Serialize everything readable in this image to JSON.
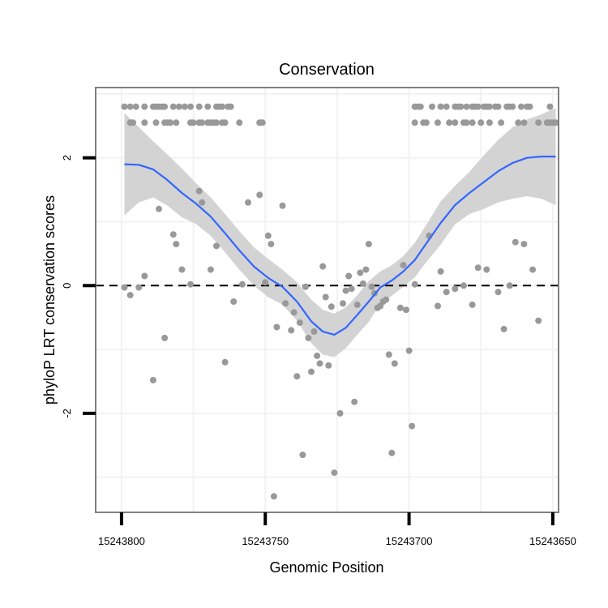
{
  "chart_data": {
    "type": "scatter",
    "title": "Conservation",
    "xlabel": "Genomic Position",
    "ylabel": "phyloP LRT conservation scores",
    "x_reversed": true,
    "xlim": [
      15243809,
      15243648
    ],
    "ylim": [
      -3.55,
      3.1
    ],
    "x_ticks": [
      15243800,
      15243750,
      15243700,
      15243650
    ],
    "x_tick_labels": [
      "15243800",
      "15243750",
      "15243700",
      "15243650"
    ],
    "y_ticks": [
      -2,
      0,
      2
    ],
    "y_tick_labels": [
      "-2",
      "0",
      "2"
    ],
    "minor_x": [
      15243775,
      15243725,
      15243675
    ],
    "minor_y": [
      -3,
      -1,
      1,
      3
    ],
    "reference_line": {
      "y": 0,
      "style": "dashed"
    },
    "colors": {
      "points": "#999999",
      "smooth": "#3366ff",
      "ribbon": "#d3d3d3",
      "panel_border": "#808080",
      "grid": "#f2f2f2"
    },
    "points": [
      [
        15243799,
        2.8
      ],
      [
        15243797,
        2.8
      ],
      [
        15243795,
        2.8
      ],
      [
        15243792,
        2.8
      ],
      [
        15243789,
        2.8
      ],
      [
        15243788,
        2.8
      ],
      [
        15243787,
        2.8
      ],
      [
        15243786,
        2.8
      ],
      [
        15243785,
        2.8
      ],
      [
        15243782,
        2.8
      ],
      [
        15243780,
        2.8
      ],
      [
        15243778,
        2.8
      ],
      [
        15243776,
        2.8
      ],
      [
        15243773,
        2.8
      ],
      [
        15243770,
        2.8
      ],
      [
        15243767,
        2.8
      ],
      [
        15243766,
        2.8
      ],
      [
        15243765,
        2.8
      ],
      [
        15243763,
        2.8
      ],
      [
        15243762,
        2.8
      ],
      [
        15243698,
        2.8
      ],
      [
        15243697,
        2.8
      ],
      [
        15243696,
        2.8
      ],
      [
        15243692,
        2.8
      ],
      [
        15243689,
        2.8
      ],
      [
        15243687,
        2.8
      ],
      [
        15243684,
        2.8
      ],
      [
        15243683,
        2.8
      ],
      [
        15243682,
        2.8
      ],
      [
        15243680,
        2.8
      ],
      [
        15243678,
        2.8
      ],
      [
        15243677,
        2.8
      ],
      [
        15243676,
        2.8
      ],
      [
        15243674,
        2.8
      ],
      [
        15243673,
        2.8
      ],
      [
        15243672,
        2.8
      ],
      [
        15243670,
        2.8
      ],
      [
        15243669,
        2.8
      ],
      [
        15243666,
        2.8
      ],
      [
        15243665,
        2.8
      ],
      [
        15243664,
        2.8
      ],
      [
        15243661,
        2.8
      ],
      [
        15243659,
        2.8
      ],
      [
        15243658,
        2.8
      ],
      [
        15243651,
        2.8
      ],
      [
        15243797,
        2.55
      ],
      [
        15243796,
        2.55
      ],
      [
        15243792,
        2.55
      ],
      [
        15243788,
        2.55
      ],
      [
        15243785,
        2.55
      ],
      [
        15243784,
        2.55
      ],
      [
        15243783,
        2.55
      ],
      [
        15243781,
        2.55
      ],
      [
        15243776,
        2.55
      ],
      [
        15243775,
        2.55
      ],
      [
        15243773,
        2.55
      ],
      [
        15243772,
        2.55
      ],
      [
        15243770,
        2.55
      ],
      [
        15243769,
        2.55
      ],
      [
        15243768,
        2.55
      ],
      [
        15243767,
        2.55
      ],
      [
        15243765,
        2.55
      ],
      [
        15243764,
        2.55
      ],
      [
        15243759,
        2.55
      ],
      [
        15243752,
        2.55
      ],
      [
        15243751,
        2.55
      ],
      [
        15243698,
        2.55
      ],
      [
        15243695,
        2.55
      ],
      [
        15243694,
        2.55
      ],
      [
        15243690,
        2.55
      ],
      [
        15243686,
        2.55
      ],
      [
        15243684,
        2.55
      ],
      [
        15243681,
        2.55
      ],
      [
        15243680,
        2.55
      ],
      [
        15243678,
        2.55
      ],
      [
        15243675,
        2.55
      ],
      [
        15243672,
        2.55
      ],
      [
        15243668,
        2.55
      ],
      [
        15243662,
        2.55
      ],
      [
        15243660,
        2.55
      ],
      [
        15243655,
        2.55
      ],
      [
        15243652,
        2.55
      ],
      [
        15243651,
        2.55
      ],
      [
        15243650,
        2.55
      ],
      [
        15243649,
        2.55
      ],
      [
        15243799,
        -0.03
      ],
      [
        15243797,
        -0.15
      ],
      [
        15243794,
        -0.03
      ],
      [
        15243792,
        0.15
      ],
      [
        15243789,
        -1.48
      ],
      [
        15243787,
        1.2
      ],
      [
        15243785,
        -0.82
      ],
      [
        15243782,
        0.8
      ],
      [
        15243781,
        0.65
      ],
      [
        15243779,
        0.25
      ],
      [
        15243776,
        0.02
      ],
      [
        15243773,
        1.48
      ],
      [
        15243772,
        1.3
      ],
      [
        15243769,
        0.25
      ],
      [
        15243767,
        0.62
      ],
      [
        15243764,
        -1.2
      ],
      [
        15243761,
        -0.25
      ],
      [
        15243758,
        0.02
      ],
      [
        15243756,
        1.3
      ],
      [
        15243752,
        1.42
      ],
      [
        15243750,
        0.05
      ],
      [
        15243749,
        0.78
      ],
      [
        15243748,
        0.65
      ],
      [
        15243746,
        -0.65
      ],
      [
        15243744,
        1.25
      ],
      [
        15243743,
        -0.28
      ],
      [
        15243741,
        -0.7
      ],
      [
        15243740,
        -0.42
      ],
      [
        15243739,
        -1.42
      ],
      [
        15243738,
        -0.58
      ],
      [
        15243737,
        -2.65
      ],
      [
        15243736,
        -0.02
      ],
      [
        15243735,
        -0.82
      ],
      [
        15243734,
        -1.35
      ],
      [
        15243733,
        -0.72
      ],
      [
        15243732,
        -1.1
      ],
      [
        15243731,
        -1.22
      ],
      [
        15243730,
        0.3
      ],
      [
        15243729,
        -0.18
      ],
      [
        15243728,
        -1.25
      ],
      [
        15243727,
        -0.33
      ],
      [
        15243726,
        -2.93
      ],
      [
        15243724,
        -2.0
      ],
      [
        15243723,
        -0.28
      ],
      [
        15243722,
        -0.08
      ],
      [
        15243721,
        0.15
      ],
      [
        15243720,
        -0.05
      ],
      [
        15243719,
        -1.82
      ],
      [
        15243718,
        -0.3
      ],
      [
        15243717,
        0.2
      ],
      [
        15243716,
        0.03
      ],
      [
        15243715,
        0.25
      ],
      [
        15243714,
        0.65
      ],
      [
        15243713,
        -0.02
      ],
      [
        15243712,
        -0.12
      ],
      [
        15243711,
        -0.35
      ],
      [
        15243710,
        -0.32
      ],
      [
        15243709,
        -0.25
      ],
      [
        15243708,
        -0.22
      ],
      [
        15243707,
        -1.08
      ],
      [
        15243706,
        -2.62
      ],
      [
        15243705,
        -1.22
      ],
      [
        15243703,
        -0.35
      ],
      [
        15243702,
        0.32
      ],
      [
        15243701,
        -0.38
      ],
      [
        15243700,
        -1.02
      ],
      [
        15243699,
        -2.2
      ],
      [
        15243698,
        0.02
      ],
      [
        15243693,
        0.78
      ],
      [
        15243690,
        -0.32
      ],
      [
        15243689,
        0.22
      ],
      [
        15243687,
        -0.1
      ],
      [
        15243684,
        -0.05
      ],
      [
        15243681,
        0.0
      ],
      [
        15243678,
        -0.3
      ],
      [
        15243676,
        0.28
      ],
      [
        15243673,
        0.25
      ],
      [
        15243669,
        -0.1
      ],
      [
        15243667,
        -0.68
      ],
      [
        15243665,
        0.0
      ],
      [
        15243663,
        0.68
      ],
      [
        15243660,
        0.65
      ],
      [
        15243657,
        0.25
      ],
      [
        15243655,
        -0.55
      ],
      [
        15243747,
        -3.3
      ]
    ],
    "smooth_line": [
      [
        15243799,
        1.9
      ],
      [
        15243794,
        1.89
      ],
      [
        15243789,
        1.82
      ],
      [
        15243784,
        1.65
      ],
      [
        15243779,
        1.45
      ],
      [
        15243774,
        1.28
      ],
      [
        15243769,
        1.08
      ],
      [
        15243764,
        0.82
      ],
      [
        15243759,
        0.55
      ],
      [
        15243754,
        0.3
      ],
      [
        15243749,
        0.12
      ],
      [
        15243744,
        -0.02
      ],
      [
        15243739,
        -0.25
      ],
      [
        15243734,
        -0.56
      ],
      [
        15243730,
        -0.72
      ],
      [
        15243726,
        -0.77
      ],
      [
        15243722,
        -0.66
      ],
      [
        15243718,
        -0.46
      ],
      [
        15243714,
        -0.25
      ],
      [
        15243710,
        -0.03
      ],
      [
        15243706,
        0.08
      ],
      [
        15243702,
        0.22
      ],
      [
        15243698,
        0.4
      ],
      [
        15243694,
        0.66
      ],
      [
        15243689,
        0.98
      ],
      [
        15243684,
        1.26
      ],
      [
        15243679,
        1.45
      ],
      [
        15243674,
        1.62
      ],
      [
        15243669,
        1.79
      ],
      [
        15243664,
        1.92
      ],
      [
        15243659,
        2.0
      ],
      [
        15243654,
        2.02
      ],
      [
        15243649,
        2.02
      ]
    ],
    "ribbon": {
      "upper": [
        [
          15243799,
          2.7
        ],
        [
          15243794,
          2.48
        ],
        [
          15243789,
          2.26
        ],
        [
          15243784,
          2.05
        ],
        [
          15243779,
          1.83
        ],
        [
          15243774,
          1.6
        ],
        [
          15243769,
          1.38
        ],
        [
          15243764,
          1.12
        ],
        [
          15243759,
          0.85
        ],
        [
          15243754,
          0.6
        ],
        [
          15243749,
          0.42
        ],
        [
          15243744,
          0.25
        ],
        [
          15243739,
          0.05
        ],
        [
          15243734,
          -0.22
        ],
        [
          15243730,
          -0.38
        ],
        [
          15243726,
          -0.44
        ],
        [
          15243722,
          -0.34
        ],
        [
          15243718,
          -0.15
        ],
        [
          15243714,
          0.07
        ],
        [
          15243710,
          0.22
        ],
        [
          15243706,
          0.32
        ],
        [
          15243702,
          0.46
        ],
        [
          15243698,
          0.67
        ],
        [
          15243694,
          0.95
        ],
        [
          15243689,
          1.32
        ],
        [
          15243684,
          1.56
        ],
        [
          15243679,
          1.78
        ],
        [
          15243674,
          2.04
        ],
        [
          15243669,
          2.28
        ],
        [
          15243664,
          2.48
        ],
        [
          15243659,
          2.6
        ],
        [
          15243654,
          2.68
        ],
        [
          15243649,
          2.78
        ]
      ],
      "lower": [
        [
          15243799,
          1.1
        ],
        [
          15243794,
          1.3
        ],
        [
          15243789,
          1.38
        ],
        [
          15243784,
          1.25
        ],
        [
          15243779,
          1.07
        ],
        [
          15243774,
          0.96
        ],
        [
          15243769,
          0.78
        ],
        [
          15243764,
          0.52
        ],
        [
          15243759,
          0.25
        ],
        [
          15243754,
          0.0
        ],
        [
          15243749,
          -0.18
        ],
        [
          15243744,
          -0.3
        ],
        [
          15243739,
          -0.55
        ],
        [
          15243734,
          -0.9
        ],
        [
          15243730,
          -1.08
        ],
        [
          15243726,
          -1.12
        ],
        [
          15243722,
          -0.98
        ],
        [
          15243718,
          -0.77
        ],
        [
          15243714,
          -0.57
        ],
        [
          15243710,
          -0.28
        ],
        [
          15243706,
          -0.16
        ],
        [
          15243702,
          -0.02
        ],
        [
          15243698,
          0.13
        ],
        [
          15243694,
          0.37
        ],
        [
          15243689,
          0.64
        ],
        [
          15243684,
          0.96
        ],
        [
          15243679,
          1.12
        ],
        [
          15243674,
          1.2
        ],
        [
          15243669,
          1.3
        ],
        [
          15243664,
          1.36
        ],
        [
          15243659,
          1.4
        ],
        [
          15243654,
          1.36
        ],
        [
          15243649,
          1.26
        ]
      ]
    }
  }
}
